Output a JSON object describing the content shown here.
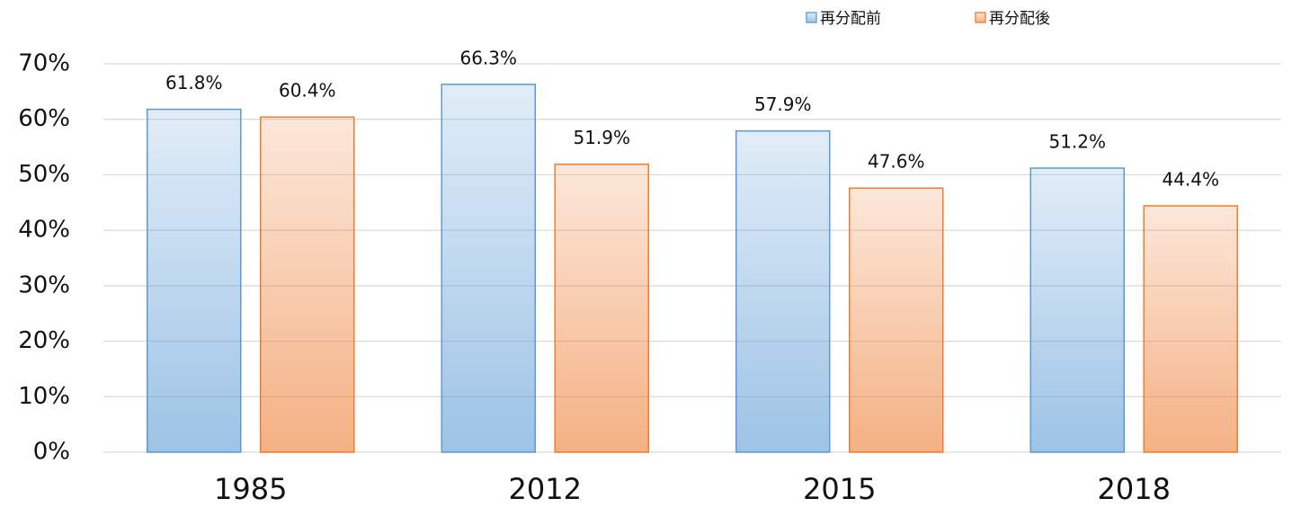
{
  "chart_data": {
    "type": "bar",
    "categories": [
      "1985",
      "2012",
      "2015",
      "2018"
    ],
    "series": [
      {
        "name": "再分配前",
        "color": "#5b9bd5",
        "values": [
          61.8,
          66.3,
          57.9,
          51.2
        ],
        "value_labels": [
          "61.8%",
          "66.3%",
          "57.9%",
          "51.2%"
        ]
      },
      {
        "name": "再分配後",
        "color": "#ed7d31",
        "values": [
          60.4,
          51.9,
          47.6,
          44.4
        ],
        "value_labels": [
          "60.4%",
          "51.9%",
          "47.6%",
          "44.4%"
        ]
      }
    ],
    "ylim": [
      0,
      70
    ],
    "yticks": [
      {
        "value": 0,
        "label": "0%"
      },
      {
        "value": 10,
        "label": "10%"
      },
      {
        "value": 20,
        "label": "20%"
      },
      {
        "value": 30,
        "label": "30%"
      },
      {
        "value": 40,
        "label": "40%"
      },
      {
        "value": 50,
        "label": "50%"
      },
      {
        "value": 60,
        "label": "60%"
      },
      {
        "value": 70,
        "label": "70%"
      }
    ],
    "grid": true,
    "legend": "top-right"
  }
}
